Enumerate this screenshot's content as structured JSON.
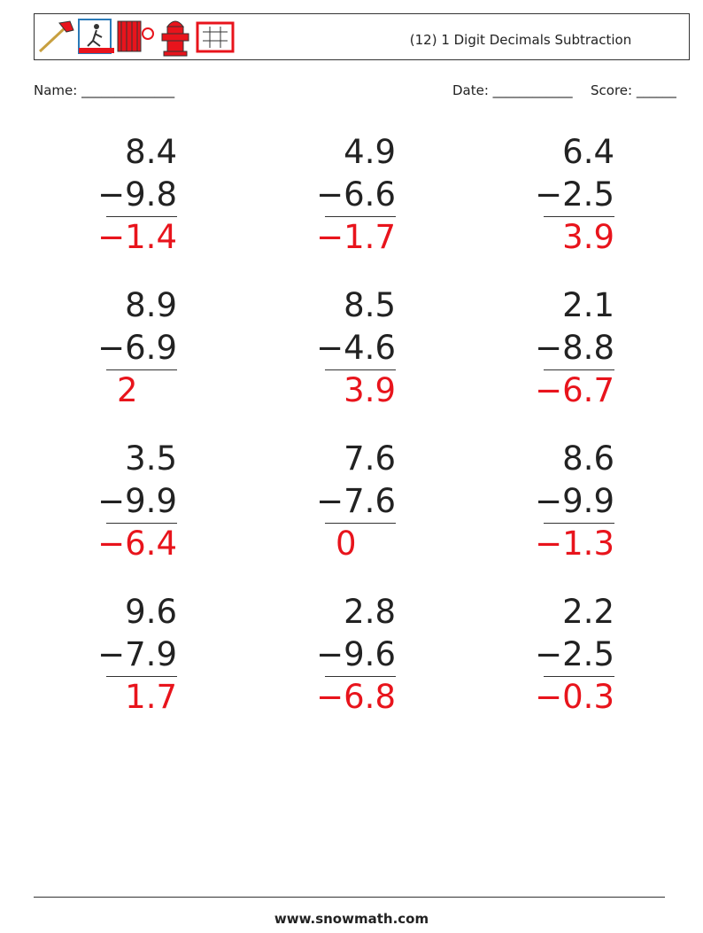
{
  "header": {
    "title": "(12) 1 Digit Decimals Subtraction"
  },
  "fields": {
    "name": "Name: ______________",
    "date": "Date: ____________",
    "score": "Score: ______"
  },
  "problems": [
    {
      "top": "8.4",
      "bottom": "−9.8",
      "answer": "−1.4"
    },
    {
      "top": "4.9",
      "bottom": "−6.6",
      "answer": "−1.7"
    },
    {
      "top": "6.4",
      "bottom": "−2.5",
      "answer": "3.9"
    },
    {
      "top": "8.9",
      "bottom": "−6.9",
      "answer": "2"
    },
    {
      "top": "8.5",
      "bottom": "−4.6",
      "answer": "3.9"
    },
    {
      "top": "2.1",
      "bottom": "−8.8",
      "answer": "−6.7"
    },
    {
      "top": "3.5",
      "bottom": "−9.9",
      "answer": "−6.4"
    },
    {
      "top": "7.6",
      "bottom": "−7.6",
      "answer": "0"
    },
    {
      "top": "8.6",
      "bottom": "−9.9",
      "answer": "−1.3"
    },
    {
      "top": "9.6",
      "bottom": "−7.9",
      "answer": "1.7"
    },
    {
      "top": "2.8",
      "bottom": "−9.6",
      "answer": "−6.8"
    },
    {
      "top": "2.2",
      "bottom": "−2.5",
      "answer": "−0.3"
    }
  ],
  "footer": "www.snowmath.com"
}
